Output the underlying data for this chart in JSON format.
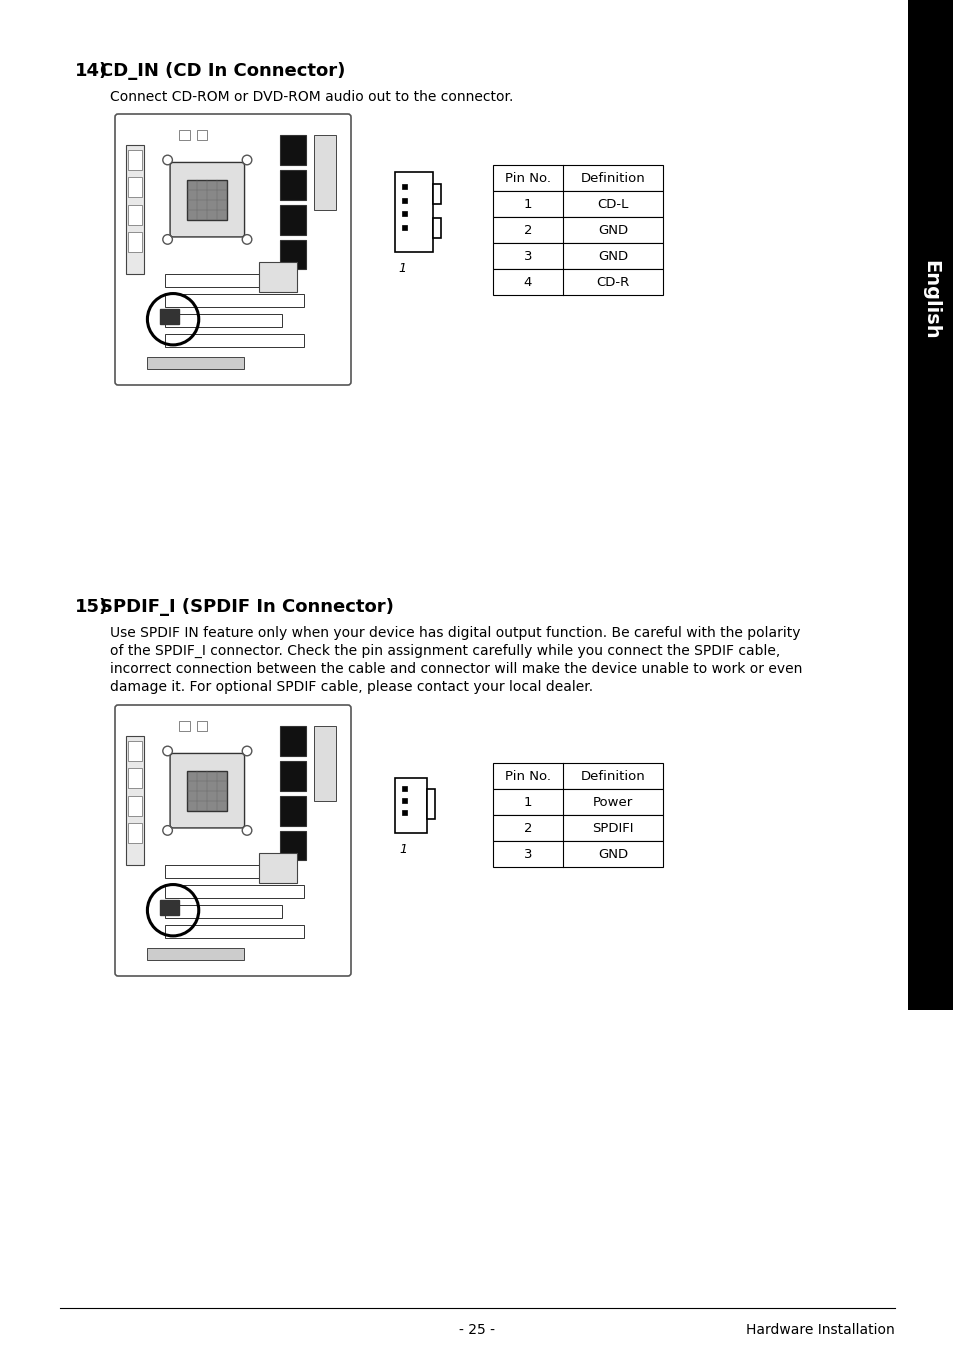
{
  "page_bg": "#ffffff",
  "sidebar_color": "#000000",
  "sidebar_text": "English",
  "section14_number": "14)",
  "section14_title": "CD_IN (CD In Connector)",
  "section14_desc": "Connect CD-ROM or DVD-ROM audio out to the connector.",
  "section14_table_headers": [
    "Pin No.",
    "Definition"
  ],
  "section14_table_rows": [
    [
      "1",
      "CD-L"
    ],
    [
      "2",
      "GND"
    ],
    [
      "3",
      "GND"
    ],
    [
      "4",
      "CD-R"
    ]
  ],
  "section15_number": "15)",
  "section15_title": "SPDIF_I (SPDIF In Connector)",
  "section15_desc_lines": [
    "Use SPDIF IN feature only when your device has digital output function. Be careful with the polarity",
    "of the SPDIF_I connector. Check the pin assignment carefully while you connect the SPDIF cable,",
    "incorrect connection between the cable and connector will make the device unable to work or even",
    "damage it. For optional SPDIF cable, please contact your local dealer."
  ],
  "section15_table_headers": [
    "Pin No.",
    "Definition"
  ],
  "section15_table_rows": [
    [
      "1",
      "Power"
    ],
    [
      "2",
      "SPDIFI"
    ],
    [
      "3",
      "GND"
    ]
  ],
  "footer_left": "- 25 -",
  "footer_right": "Hardware Installation",
  "font_size_section_num": 13,
  "font_size_title": 13,
  "font_size_body": 10,
  "font_size_small": 9.5,
  "font_size_footer": 10
}
